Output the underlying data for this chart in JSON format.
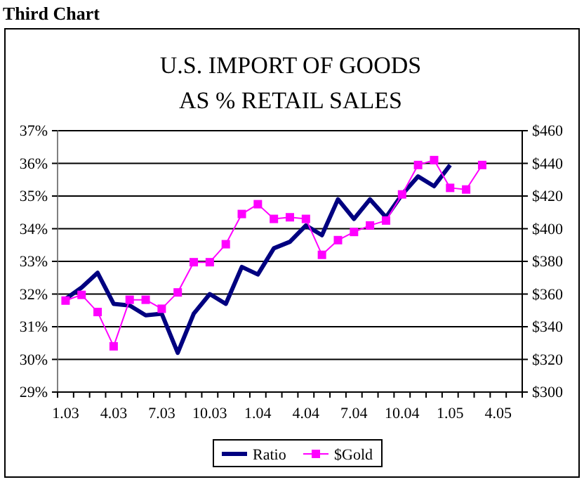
{
  "chart_data": {
    "type": "line",
    "title": "U.S. IMPORT OF GOODS\nAS % RETAIL SALES",
    "annotations": [
      "Third Chart"
    ],
    "categories": [
      "1.03",
      null,
      null,
      "4.03",
      null,
      null,
      "7.03",
      null,
      null,
      "10.03",
      null,
      null,
      "1.04",
      null,
      null,
      "4.04",
      null,
      null,
      "7.04",
      null,
      null,
      "10.04",
      null,
      null,
      "1.05",
      null,
      null,
      "4.05",
      null
    ],
    "series": [
      {
        "name": "Ratio",
        "color": "#000080",
        "marker": "none",
        "values": [
          31.85,
          32.2,
          32.65,
          31.7,
          31.65,
          31.35,
          31.4,
          30.2,
          31.4,
          32.0,
          31.7,
          32.83,
          32.6,
          33.4,
          33.6,
          34.1,
          33.8,
          34.9,
          34.3,
          34.9,
          34.35,
          35.05,
          35.6,
          35.3,
          35.95,
          null,
          null,
          null,
          null
        ]
      },
      {
        "name": "$Gold",
        "color": "#ff00ff",
        "marker": "square",
        "axis": "y2",
        "values": [
          356,
          359.5,
          349,
          328,
          356.5,
          356.5,
          351,
          361,
          379.5,
          379.5,
          390.5,
          409,
          415,
          406,
          407,
          406,
          384,
          393,
          398,
          402,
          405,
          421,
          439,
          442,
          425,
          424,
          439,
          null,
          null
        ]
      }
    ],
    "ylim": [
      29,
      37
    ],
    "yticks": [
      {
        "value": 29,
        "label": "29%"
      },
      {
        "value": 30,
        "label": "30%"
      },
      {
        "value": 31,
        "label": "31%"
      },
      {
        "value": 32,
        "label": "32%"
      },
      {
        "value": 33,
        "label": "33%"
      },
      {
        "value": 34,
        "label": "34%"
      },
      {
        "value": 35,
        "label": "35%"
      },
      {
        "value": 36,
        "label": "36%"
      },
      {
        "value": 37,
        "label": "37%"
      }
    ],
    "y2lim": [
      300,
      460
    ],
    "y2ticks": [
      {
        "value": 300,
        "label": "$300"
      },
      {
        "value": 320,
        "label": "$320"
      },
      {
        "value": 340,
        "label": "$340"
      },
      {
        "value": 360,
        "label": "$360"
      },
      {
        "value": 380,
        "label": "$380"
      },
      {
        "value": 400,
        "label": "$400"
      },
      {
        "value": 420,
        "label": "$420"
      },
      {
        "value": 440,
        "label": "$440"
      },
      {
        "value": 460,
        "label": "$460"
      }
    ],
    "grid": "y",
    "legend": "bottom"
  }
}
